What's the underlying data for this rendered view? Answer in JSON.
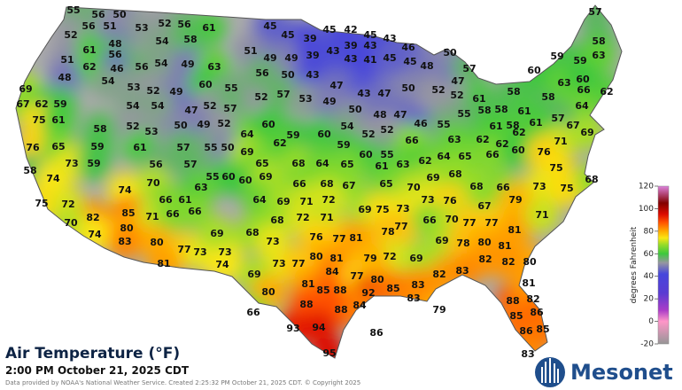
{
  "title": "Air Temperature (°F)",
  "subtitle": "2:00 PM October 21, 2025 CDT",
  "credit": "Data provided by NOAA's National Weather Service. Created 2:25:32 PM October 21, 2025 CDT. © Copyright 2025",
  "logo": "Mesonet",
  "colorbar": {
    "label": "degrees Fahrenheit",
    "lim": [
      -20,
      120
    ],
    "ticks": [
      120,
      100,
      80,
      60,
      40,
      20,
      0,
      -20
    ]
  },
  "stations": [
    55,
    56,
    50,
    56,
    51,
    53,
    52,
    56,
    61,
    52,
    48,
    54,
    58,
    45,
    45,
    39,
    45,
    42,
    45,
    43,
    61,
    51,
    62,
    56,
    46,
    56,
    54,
    49,
    63,
    48,
    54,
    53,
    52,
    49,
    60,
    55,
    69,
    67,
    62,
    59,
    75,
    61,
    54,
    54,
    47,
    52,
    57,
    58,
    52,
    53,
    50,
    49,
    52,
    64,
    76,
    65,
    59,
    61,
    57,
    55,
    50,
    58,
    74,
    73,
    59,
    56,
    57,
    55,
    60,
    74,
    70,
    63,
    61,
    66,
    51,
    49,
    49,
    39,
    43,
    39,
    43,
    43,
    41,
    45,
    46,
    45,
    48,
    50,
    50,
    43,
    47,
    43,
    47,
    50,
    52,
    47,
    57,
    52,
    61,
    52,
    57,
    53,
    49,
    56,
    50,
    48,
    47,
    46,
    55,
    55,
    58,
    58,
    58,
    61,
    58,
    60,
    59,
    59,
    63,
    66,
    62,
    57,
    58,
    63,
    60,
    64,
    67,
    57,
    61,
    58,
    61,
    60,
    59,
    60,
    54,
    52,
    52,
    59,
    60,
    55,
    66,
    63,
    62,
    62,
    62,
    71,
    69,
    69,
    62,
    65,
    68,
    64,
    65,
    61,
    63,
    62,
    64,
    65,
    66,
    60,
    76,
    75,
    60,
    69,
    66,
    68,
    67,
    65,
    70,
    69,
    68,
    68,
    66,
    73,
    75,
    68,
    64,
    69,
    71,
    72,
    69,
    75,
    73,
    73,
    76,
    67,
    79,
    68,
    72,
    71,
    77,
    66,
    70,
    77,
    77,
    81,
    71,
    68,
    73,
    76,
    77,
    81,
    78,
    69,
    78,
    80,
    81,
    80,
    82,
    82,
    83,
    82,
    69,
    72,
    79,
    81,
    80,
    73,
    77,
    84,
    69,
    81,
    85,
    88,
    77,
    80,
    92,
    85,
    83,
    83,
    79,
    88,
    88,
    84,
    93,
    94,
    95,
    86,
    88,
    85,
    81,
    82,
    86,
    86,
    85,
    83,
    75,
    72,
    82,
    85,
    71,
    66,
    66,
    70,
    74,
    80,
    83,
    80,
    77,
    73,
    73,
    69,
    74,
    81,
    80,
    66
  ]
}
